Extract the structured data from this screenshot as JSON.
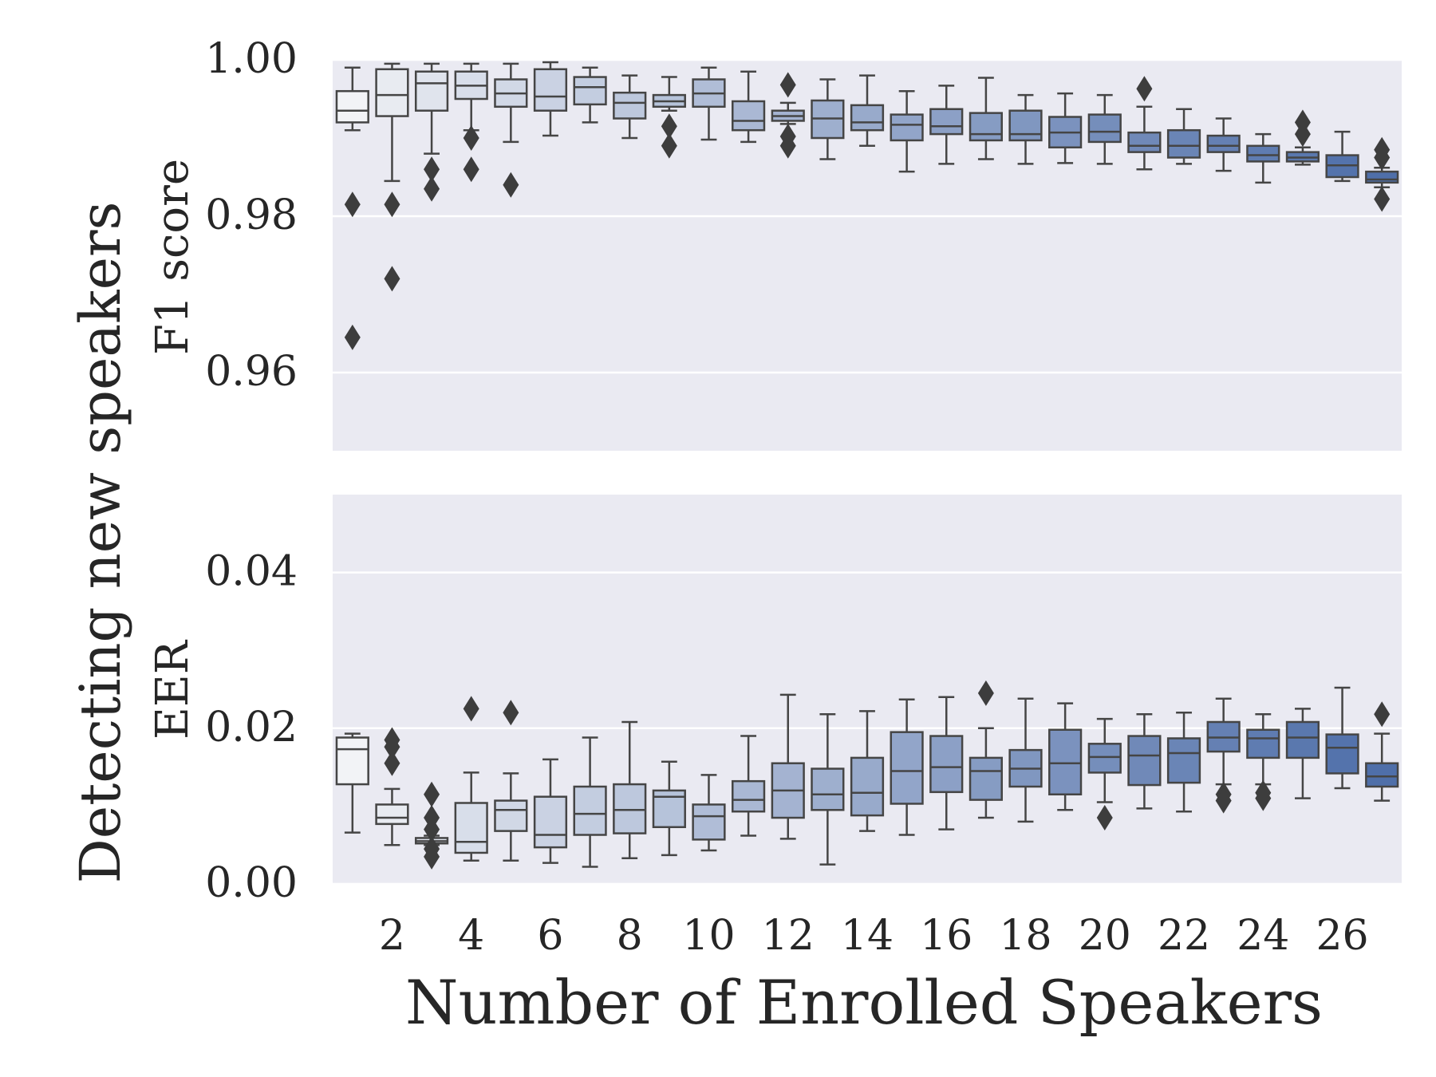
{
  "figure": {
    "ylabel": "Detecting new speakers",
    "xlabel": "Number of Enrolled Speakers"
  },
  "chart_data": [
    {
      "type": "box",
      "ylabel": "F1 score",
      "ylim": [
        0.95,
        1.0
      ],
      "yticks": [
        "0.96",
        "0.98",
        "1.00"
      ],
      "ytick_values": [
        0.96,
        0.98,
        1.0
      ],
      "grid": true,
      "x": [
        1,
        2,
        3,
        4,
        5,
        6,
        7,
        8,
        9,
        10,
        11,
        12,
        13,
        14,
        15,
        16,
        17,
        18,
        19,
        20,
        21,
        22,
        23,
        24,
        25,
        26,
        27
      ],
      "xticks": [
        "2",
        "4",
        "6",
        "8",
        "10",
        "12",
        "14",
        "16",
        "18",
        "20",
        "22",
        "24",
        "26"
      ],
      "boxes": [
        {
          "x": 1,
          "whislo": 0.991,
          "q1": 0.992,
          "med": 0.9935,
          "q3": 0.996,
          "whishi": 0.999,
          "fliers": [
            0.9815,
            0.9645
          ]
        },
        {
          "x": 2,
          "whislo": 0.9845,
          "q1": 0.9928,
          "med": 0.9955,
          "q3": 0.9988,
          "whishi": 0.9995,
          "fliers": [
            0.9815,
            0.972
          ]
        },
        {
          "x": 3,
          "whislo": 0.988,
          "q1": 0.9935,
          "med": 0.997,
          "q3": 0.9985,
          "whishi": 0.9995,
          "fliers": [
            0.986,
            0.9835
          ]
        },
        {
          "x": 4,
          "whislo": 0.991,
          "q1": 0.995,
          "med": 0.9967,
          "q3": 0.9985,
          "whishi": 0.9995,
          "fliers": [
            0.99,
            0.986
          ]
        },
        {
          "x": 5,
          "whislo": 0.9895,
          "q1": 0.994,
          "med": 0.9957,
          "q3": 0.9975,
          "whishi": 0.9995,
          "fliers": [
            0.984
          ]
        },
        {
          "x": 6,
          "whislo": 0.9903,
          "q1": 0.9935,
          "med": 0.9953,
          "q3": 0.9988,
          "whishi": 0.9997,
          "fliers": []
        },
        {
          "x": 7,
          "whislo": 0.992,
          "q1": 0.9943,
          "med": 0.9965,
          "q3": 0.9978,
          "whishi": 0.999,
          "fliers": []
        },
        {
          "x": 8,
          "whislo": 0.99,
          "q1": 0.9925,
          "med": 0.9945,
          "q3": 0.9958,
          "whishi": 0.998,
          "fliers": []
        },
        {
          "x": 9,
          "whislo": 0.9935,
          "q1": 0.994,
          "med": 0.9947,
          "q3": 0.9955,
          "whishi": 0.9978,
          "fliers": [
            0.9915,
            0.989
          ]
        },
        {
          "x": 10,
          "whislo": 0.9898,
          "q1": 0.994,
          "med": 0.9957,
          "q3": 0.9975,
          "whishi": 0.999,
          "fliers": []
        },
        {
          "x": 11,
          "whislo": 0.9895,
          "q1": 0.991,
          "med": 0.9922,
          "q3": 0.9947,
          "whishi": 0.9985,
          "fliers": []
        },
        {
          "x": 12,
          "whislo": 0.9918,
          "q1": 0.9922,
          "med": 0.9928,
          "q3": 0.9935,
          "whishi": 0.9945,
          "fliers": [
            0.9968,
            0.9902,
            0.989
          ]
        },
        {
          "x": 13,
          "whislo": 0.9873,
          "q1": 0.99,
          "med": 0.9925,
          "q3": 0.9948,
          "whishi": 0.9975,
          "fliers": []
        },
        {
          "x": 14,
          "whislo": 0.989,
          "q1": 0.991,
          "med": 0.992,
          "q3": 0.9942,
          "whishi": 0.998,
          "fliers": []
        },
        {
          "x": 15,
          "whislo": 0.9857,
          "q1": 0.9897,
          "med": 0.9917,
          "q3": 0.993,
          "whishi": 0.996,
          "fliers": []
        },
        {
          "x": 16,
          "whislo": 0.9867,
          "q1": 0.9905,
          "med": 0.9915,
          "q3": 0.9937,
          "whishi": 0.9967,
          "fliers": []
        },
        {
          "x": 17,
          "whislo": 0.9873,
          "q1": 0.9897,
          "med": 0.9905,
          "q3": 0.9932,
          "whishi": 0.9977,
          "fliers": []
        },
        {
          "x": 18,
          "whislo": 0.9867,
          "q1": 0.9897,
          "med": 0.9905,
          "q3": 0.9935,
          "whishi": 0.9955,
          "fliers": []
        },
        {
          "x": 19,
          "whislo": 0.9868,
          "q1": 0.9888,
          "med": 0.9907,
          "q3": 0.9927,
          "whishi": 0.9957,
          "fliers": []
        },
        {
          "x": 20,
          "whislo": 0.9867,
          "q1": 0.9895,
          "med": 0.9908,
          "q3": 0.993,
          "whishi": 0.9955,
          "fliers": []
        },
        {
          "x": 21,
          "whislo": 0.986,
          "q1": 0.9882,
          "med": 0.989,
          "q3": 0.9907,
          "whishi": 0.994,
          "fliers": [
            0.9963
          ]
        },
        {
          "x": 22,
          "whislo": 0.9867,
          "q1": 0.9875,
          "med": 0.989,
          "q3": 0.991,
          "whishi": 0.9937,
          "fliers": []
        },
        {
          "x": 23,
          "whislo": 0.9858,
          "q1": 0.9882,
          "med": 0.989,
          "q3": 0.9903,
          "whishi": 0.9925,
          "fliers": []
        },
        {
          "x": 24,
          "whislo": 0.9843,
          "q1": 0.987,
          "med": 0.9878,
          "q3": 0.989,
          "whishi": 0.9905,
          "fliers": []
        },
        {
          "x": 25,
          "whislo": 0.9866,
          "q1": 0.987,
          "med": 0.9875,
          "q3": 0.9882,
          "whishi": 0.9888,
          "fliers": [
            0.992,
            0.9905
          ]
        },
        {
          "x": 26,
          "whislo": 0.9845,
          "q1": 0.985,
          "med": 0.9865,
          "q3": 0.9878,
          "whishi": 0.9908,
          "fliers": []
        },
        {
          "x": 27,
          "whislo": 0.9837,
          "q1": 0.9843,
          "med": 0.9847,
          "q3": 0.9857,
          "whishi": 0.9862,
          "fliers": [
            0.9885,
            0.9875,
            0.9822
          ]
        }
      ]
    },
    {
      "type": "box",
      "ylabel": "EER",
      "ylim": [
        0.0,
        0.05
      ],
      "yticks": [
        "0.00",
        "0.02",
        "0.04"
      ],
      "ytick_values": [
        0.0,
        0.02,
        0.04
      ],
      "grid": true,
      "x": [
        1,
        2,
        3,
        4,
        5,
        6,
        7,
        8,
        9,
        10,
        11,
        12,
        13,
        14,
        15,
        16,
        17,
        18,
        19,
        20,
        21,
        22,
        23,
        24,
        25,
        26,
        27
      ],
      "xticks": [
        "2",
        "4",
        "6",
        "8",
        "10",
        "12",
        "14",
        "16",
        "18",
        "20",
        "22",
        "24",
        "26"
      ],
      "boxes": [
        {
          "x": 1,
          "whislo": 0.0066,
          "q1": 0.0128,
          "med": 0.0173,
          "q3": 0.0188,
          "whishi": 0.0193,
          "fliers": []
        },
        {
          "x": 2,
          "whislo": 0.005,
          "q1": 0.0077,
          "med": 0.0085,
          "q3": 0.0102,
          "whishi": 0.0122,
          "fliers": [
            0.0185,
            0.0176,
            0.0155
          ]
        },
        {
          "x": 3,
          "whislo": 0.005,
          "q1": 0.0052,
          "med": 0.0055,
          "q3": 0.0059,
          "whishi": 0.0062,
          "fliers": [
            0.0115,
            0.0085,
            0.007,
            0.0045,
            0.0035
          ]
        },
        {
          "x": 4,
          "whislo": 0.003,
          "q1": 0.004,
          "med": 0.0054,
          "q3": 0.0104,
          "whishi": 0.0143,
          "fliers": [
            0.0225
          ]
        },
        {
          "x": 5,
          "whislo": 0.003,
          "q1": 0.0068,
          "med": 0.0095,
          "q3": 0.0107,
          "whishi": 0.0142,
          "fliers": [
            0.022
          ]
        },
        {
          "x": 6,
          "whislo": 0.0027,
          "q1": 0.0047,
          "med": 0.0063,
          "q3": 0.0112,
          "whishi": 0.016,
          "fliers": []
        },
        {
          "x": 7,
          "whislo": 0.0022,
          "q1": 0.0063,
          "med": 0.009,
          "q3": 0.0125,
          "whishi": 0.0188,
          "fliers": []
        },
        {
          "x": 8,
          "whislo": 0.0033,
          "q1": 0.0065,
          "med": 0.0095,
          "q3": 0.0128,
          "whishi": 0.0208,
          "fliers": []
        },
        {
          "x": 9,
          "whislo": 0.0037,
          "q1": 0.0073,
          "med": 0.0112,
          "q3": 0.012,
          "whishi": 0.0157,
          "fliers": []
        },
        {
          "x": 10,
          "whislo": 0.0043,
          "q1": 0.0057,
          "med": 0.0087,
          "q3": 0.0102,
          "whishi": 0.014,
          "fliers": []
        },
        {
          "x": 11,
          "whislo": 0.0062,
          "q1": 0.0093,
          "med": 0.0108,
          "q3": 0.0132,
          "whishi": 0.019,
          "fliers": []
        },
        {
          "x": 12,
          "whislo": 0.0058,
          "q1": 0.0085,
          "med": 0.012,
          "q3": 0.0155,
          "whishi": 0.0243,
          "fliers": []
        },
        {
          "x": 13,
          "whislo": 0.0025,
          "q1": 0.0095,
          "med": 0.0115,
          "q3": 0.0148,
          "whishi": 0.0218,
          "fliers": []
        },
        {
          "x": 14,
          "whislo": 0.0068,
          "q1": 0.0088,
          "med": 0.0117,
          "q3": 0.0162,
          "whishi": 0.0222,
          "fliers": []
        },
        {
          "x": 15,
          "whislo": 0.0063,
          "q1": 0.0103,
          "med": 0.0145,
          "q3": 0.0195,
          "whishi": 0.0237,
          "fliers": []
        },
        {
          "x": 16,
          "whislo": 0.007,
          "q1": 0.0118,
          "med": 0.015,
          "q3": 0.019,
          "whishi": 0.024,
          "fliers": []
        },
        {
          "x": 17,
          "whislo": 0.0085,
          "q1": 0.0108,
          "med": 0.0145,
          "q3": 0.0162,
          "whishi": 0.02,
          "fliers": [
            0.0245
          ]
        },
        {
          "x": 18,
          "whislo": 0.008,
          "q1": 0.0125,
          "med": 0.0148,
          "q3": 0.0172,
          "whishi": 0.0238,
          "fliers": []
        },
        {
          "x": 19,
          "whislo": 0.0095,
          "q1": 0.0115,
          "med": 0.0155,
          "q3": 0.0198,
          "whishi": 0.0232,
          "fliers": []
        },
        {
          "x": 20,
          "whislo": 0.0105,
          "q1": 0.0143,
          "med": 0.0163,
          "q3": 0.018,
          "whishi": 0.0212,
          "fliers": [
            0.0085
          ]
        },
        {
          "x": 21,
          "whislo": 0.0097,
          "q1": 0.0127,
          "med": 0.0165,
          "q3": 0.019,
          "whishi": 0.0218,
          "fliers": []
        },
        {
          "x": 22,
          "whislo": 0.0093,
          "q1": 0.013,
          "med": 0.0168,
          "q3": 0.0187,
          "whishi": 0.022,
          "fliers": []
        },
        {
          "x": 23,
          "whislo": 0.0128,
          "q1": 0.017,
          "med": 0.0188,
          "q3": 0.0208,
          "whishi": 0.0238,
          "fliers": [
            0.0115,
            0.0107
          ]
        },
        {
          "x": 24,
          "whislo": 0.0128,
          "q1": 0.0162,
          "med": 0.0187,
          "q3": 0.0198,
          "whishi": 0.0218,
          "fliers": [
            0.0117,
            0.011
          ]
        },
        {
          "x": 25,
          "whislo": 0.011,
          "q1": 0.0162,
          "med": 0.0188,
          "q3": 0.0208,
          "whishi": 0.0225,
          "fliers": []
        },
        {
          "x": 26,
          "whislo": 0.0123,
          "q1": 0.0142,
          "med": 0.0175,
          "q3": 0.0192,
          "whishi": 0.0252,
          "fliers": []
        },
        {
          "x": 27,
          "whislo": 0.0107,
          "q1": 0.0125,
          "med": 0.0138,
          "q3": 0.0155,
          "whishi": 0.0193,
          "fliers": [
            0.0218
          ]
        }
      ]
    }
  ],
  "colors": {
    "plot_background": "#eaeaf2",
    "grid": "#ffffff",
    "box_edge": "#454545",
    "flier": "#3d3d3d",
    "box_light": "#f2f3f6",
    "box_dark": "#4f6fa9"
  }
}
